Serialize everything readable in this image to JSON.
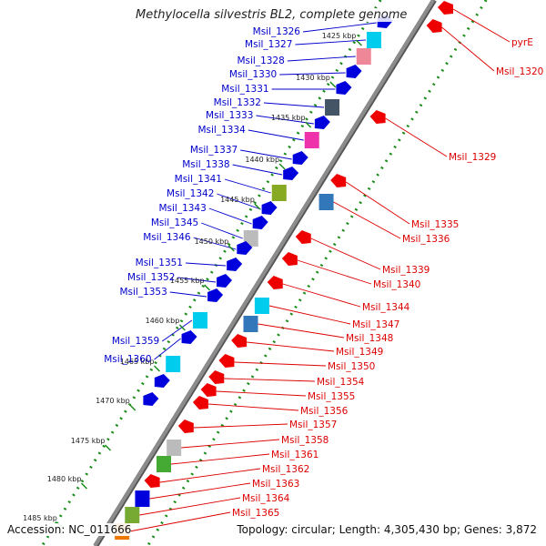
{
  "title": "Methylocella silvestris BL2, complete genome",
  "footer": {
    "accession_label": "Accession:",
    "accession": "NC_011666",
    "topology_label": "Topology:",
    "topology": "circular",
    "length_label": "Length:",
    "length": "4,305,430 bp",
    "genes_label": "Genes:",
    "genes": "3,872"
  },
  "colors": {
    "forward_gene": "#0000dd",
    "reverse_gene": "#ee0000",
    "label_forward": "#0000cc",
    "label_reverse": "#dd0000",
    "backbone": "#8c8c8c",
    "ticks": "#1a8c1a"
  },
  "ticks": [
    "1425 kbp",
    "1430 kbp",
    "1435 kbp",
    "1440 kbp",
    "1445 kbp",
    "1450 kbp",
    "1455 kbp",
    "1460 kbp",
    "1465 kbp",
    "1470 kbp",
    "1475 kbp",
    "1480 kbp",
    "1485 kbp"
  ],
  "forward_labels": [
    "Msil_1326",
    "Msil_1327",
    "Msil_1328",
    "Msil_1330",
    "Msil_1331",
    "Msil_1332",
    "Msil_1333",
    "Msil_1334",
    "Msil_1337",
    "Msil_1338",
    "Msil_1341",
    "Msil_1342",
    "Msil_1343",
    "Msil_1345",
    "Msil_1346",
    "Msil_1351",
    "Msil_1352",
    "Msil_1353",
    "Msil_1359",
    "Msil_1360"
  ],
  "reverse_labels": [
    "pyrE",
    "Msil_1320",
    "Msil_1329",
    "Msil_1335",
    "Msil_1336",
    "Msil_1339",
    "Msil_1340",
    "Msil_1344",
    "Msil_1347",
    "Msil_1348",
    "Msil_1349",
    "Msil_1350",
    "Msil_1354",
    "Msil_1355",
    "Msil_1356",
    "Msil_1357",
    "Msil_1358",
    "Msil_1361",
    "Msil_1362",
    "Msil_1363",
    "Msil_1364",
    "Msil_1365"
  ]
}
